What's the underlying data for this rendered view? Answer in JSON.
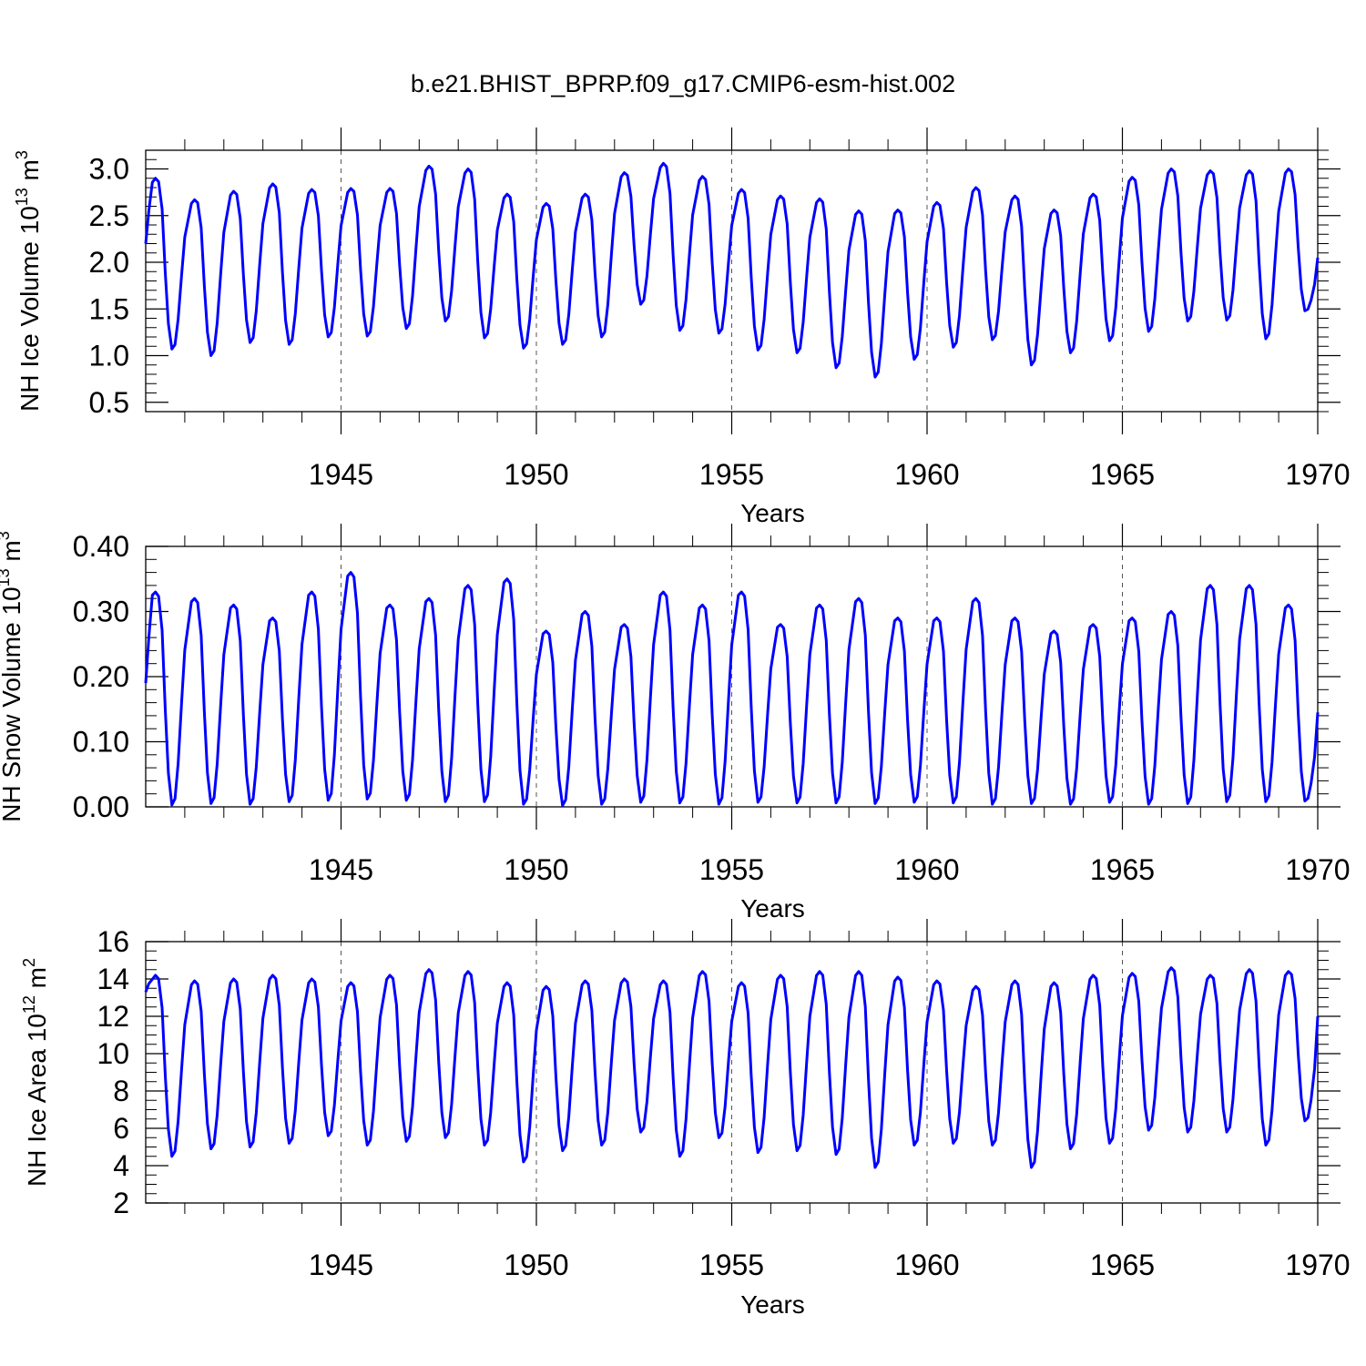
{
  "title": "b.e21.BHIST_BPRP.f09_g17.CMIP6-esm-hist.002",
  "colors": {
    "line": "#0000ff",
    "axis": "#000000",
    "grid": "#555555"
  },
  "chart_data": [
    {
      "type": "line",
      "xlabel": "Years",
      "ylabel": {
        "text": "NH Ice Volume 10",
        "exp": "13",
        "unit": " m",
        "unit_exp": "3"
      },
      "xlim": [
        1940,
        1970
      ],
      "ylim": [
        0.4,
        3.2
      ],
      "xticks": [
        1945,
        1950,
        1955,
        1960,
        1965,
        1970
      ],
      "xtick_labels": [
        "1945",
        "1950",
        "1955",
        "1960",
        "1965",
        "1970"
      ],
      "yticks": [
        0.5,
        1.0,
        1.5,
        2.0,
        2.5,
        3.0
      ],
      "ytick_labels": [
        "0.5",
        "1.0",
        "1.5",
        "2.0",
        "2.5",
        "3.0"
      ],
      "ytick_minor": 0.1,
      "annual_max": [
        2.9,
        2.67,
        2.76,
        2.84,
        2.78,
        2.79,
        2.79,
        3.03,
        3.0,
        2.73,
        2.63,
        2.73,
        2.96,
        3.06,
        2.92,
        2.78,
        2.71,
        2.68,
        2.55,
        2.56,
        2.64,
        2.8,
        2.71,
        2.56,
        2.73,
        2.91,
        3.0,
        2.98,
        2.98,
        3.0
      ],
      "annual_min": [
        1.07,
        1.0,
        1.14,
        1.12,
        1.2,
        1.21,
        1.29,
        1.37,
        1.19,
        1.08,
        1.12,
        1.2,
        1.55,
        1.27,
        1.24,
        1.06,
        1.03,
        0.87,
        0.77,
        0.96,
        1.09,
        1.17,
        0.9,
        1.03,
        1.16,
        1.26,
        1.37,
        1.38,
        1.18,
        1.48
      ],
      "start_value": 2.2,
      "end_value": 2.05
    },
    {
      "type": "line",
      "xlabel": "Years",
      "ylabel": {
        "text": "NH Snow Volume 10",
        "exp": "13",
        "unit": " m",
        "unit_exp": "3"
      },
      "xlim": [
        1940,
        1970
      ],
      "ylim": [
        0.0,
        0.4
      ],
      "xticks": [
        1945,
        1950,
        1955,
        1960,
        1965,
        1970
      ],
      "xtick_labels": [
        "1945",
        "1950",
        "1955",
        "1960",
        "1965",
        "1970"
      ],
      "yticks": [
        0.0,
        0.1,
        0.2,
        0.3,
        0.4
      ],
      "ytick_labels": [
        "0.00",
        "0.10",
        "0.20",
        "0.30",
        "0.40"
      ],
      "ytick_minor": 0.02,
      "annual_max": [
        0.33,
        0.32,
        0.31,
        0.29,
        0.33,
        0.36,
        0.31,
        0.32,
        0.34,
        0.35,
        0.27,
        0.3,
        0.28,
        0.33,
        0.31,
        0.33,
        0.28,
        0.31,
        0.32,
        0.29,
        0.29,
        0.32,
        0.29,
        0.27,
        0.28,
        0.29,
        0.3,
        0.34,
        0.34,
        0.31
      ],
      "annual_min": [
        0.003,
        0.005,
        0.004,
        0.008,
        0.01,
        0.012,
        0.01,
        0.008,
        0.008,
        0.004,
        0.002,
        0.004,
        0.007,
        0.006,
        0.004,
        0.007,
        0.006,
        0.006,
        0.005,
        0.007,
        0.006,
        0.004,
        0.005,
        0.004,
        0.007,
        0.004,
        0.005,
        0.008,
        0.008,
        0.009
      ],
      "start_value": 0.19,
      "end_value": 0.145
    },
    {
      "type": "line",
      "xlabel": "Years",
      "ylabel": {
        "text": "NH Ice Area 10",
        "exp": "12",
        "unit": " m",
        "unit_exp": "2"
      },
      "xlim": [
        1940,
        1970
      ],
      "ylim": [
        2,
        16
      ],
      "xticks": [
        1945,
        1950,
        1955,
        1960,
        1965,
        1970
      ],
      "xtick_labels": [
        "1945",
        "1950",
        "1955",
        "1960",
        "1965",
        "1970"
      ],
      "yticks": [
        2,
        4,
        6,
        8,
        10,
        12,
        14,
        16
      ],
      "ytick_labels": [
        "2",
        "4",
        "6",
        "8",
        "10",
        "12",
        "14",
        "16"
      ],
      "ytick_minor": 0.5,
      "annual_max": [
        14.2,
        13.9,
        14.0,
        14.2,
        14.0,
        13.8,
        14.2,
        14.5,
        14.4,
        13.8,
        13.6,
        13.9,
        14.0,
        13.9,
        14.4,
        13.8,
        14.2,
        14.4,
        14.4,
        14.1,
        13.9,
        13.6,
        13.9,
        13.8,
        14.2,
        14.3,
        14.6,
        14.2,
        14.5,
        14.4
      ],
      "annual_min": [
        4.5,
        4.9,
        5.0,
        5.2,
        5.6,
        5.1,
        5.3,
        5.5,
        5.1,
        4.2,
        4.8,
        5.1,
        5.8,
        4.5,
        5.5,
        4.7,
        4.8,
        4.6,
        3.9,
        5.1,
        5.2,
        5.1,
        3.9,
        4.9,
        5.2,
        5.9,
        5.8,
        5.8,
        5.1,
        6.4
      ],
      "start_value": 13.3,
      "end_value": 12.0
    }
  ]
}
